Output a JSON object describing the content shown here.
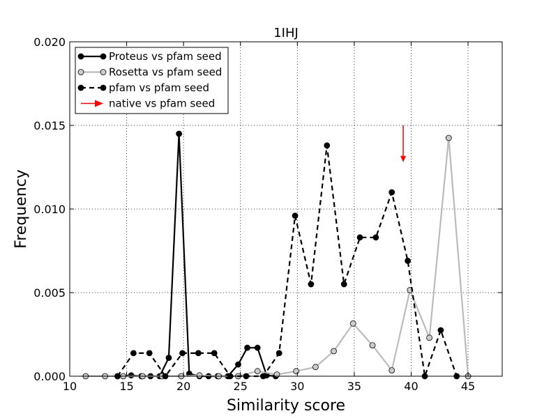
{
  "chart_data": {
    "type": "line",
    "title": "1IHJ",
    "xlabel": "Similarity score",
    "ylabel": "Frequency",
    "xlim": [
      10,
      48
    ],
    "ylim": [
      0,
      0.02
    ],
    "xticks": [
      10,
      15,
      20,
      25,
      30,
      35,
      40,
      45
    ],
    "xtick_labels": [
      "10",
      "15",
      "20",
      "25",
      "30",
      "35",
      "40",
      "45"
    ],
    "yticks": [
      0,
      0.005,
      0.01,
      0.015,
      0.02
    ],
    "ytick_labels": [
      "0.000",
      "0.005",
      "0.010",
      "0.015",
      "0.020"
    ],
    "grid": true,
    "legend_position": "top-left",
    "series": [
      {
        "name": "Proteus vs pfam seed",
        "color": "#000000",
        "style": "solid",
        "marker_fill": "#000000",
        "x": [
          14.2,
          15.4,
          16.3,
          17.1,
          17.9,
          18.7,
          19.6,
          20.5,
          21.4,
          22.2,
          23.0,
          23.9,
          24.8,
          25.6,
          26.5,
          27.3,
          28.1
        ],
        "y": [
          0,
          5e-05,
          0,
          0,
          0,
          0.0011,
          0.0145,
          0.00015,
          0,
          0,
          0,
          0,
          0.0007,
          0.0017,
          0.0017,
          5e-05,
          0
        ]
      },
      {
        "name": "Rosetta vs pfam seed",
        "color": "#bbbbbb",
        "style": "solid",
        "marker_fill": "#cccccc",
        "x": [
          11.4,
          13.1,
          14.7,
          16.4,
          18.1,
          19.8,
          21.4,
          23.1,
          24.8,
          26.5,
          28.2,
          29.9,
          31.6,
          33.2,
          34.9,
          36.6,
          38.3,
          39.9,
          41.6,
          43.3,
          45.0
        ],
        "y": [
          0,
          0,
          0,
          0,
          0,
          0,
          5e-05,
          0,
          0,
          0.0003,
          0.0001,
          0.0003,
          0.00055,
          0.0015,
          0.00315,
          0.00185,
          0.00035,
          0.00515,
          0.0023,
          0.01425,
          0
        ]
      },
      {
        "name": "pfam vs pfam seed",
        "color": "#000000",
        "style": "dashed",
        "marker_fill": "#000000",
        "x": [
          14.2,
          15.6,
          17.0,
          18.4,
          19.9,
          21.3,
          22.7,
          24.1,
          25.5,
          27.0,
          28.4,
          29.8,
          31.2,
          32.6,
          34.1,
          35.5,
          36.9,
          38.3,
          39.7,
          41.2,
          42.6,
          44.0
        ],
        "y": [
          0,
          0.00138,
          0.00138,
          0,
          0.00138,
          0.00138,
          0.00138,
          0,
          0,
          0,
          0.00138,
          0.0096,
          0.0055,
          0.0138,
          0.0055,
          0.0083,
          0.0083,
          0.011,
          0.0069,
          0,
          0.00275,
          0
        ]
      }
    ],
    "native": {
      "name": "native vs pfam seed",
      "color": "#ff0000",
      "x": 39.3,
      "y_start": 0.015,
      "y_end": 0.0128
    }
  }
}
